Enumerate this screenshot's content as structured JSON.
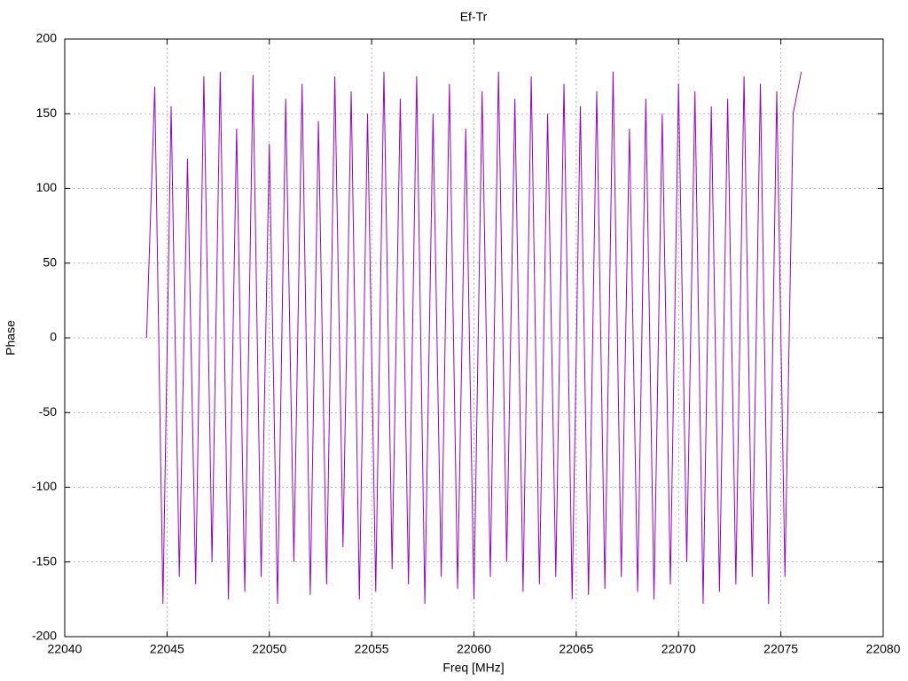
{
  "chart_data": {
    "type": "line",
    "title": "Ef-Tr",
    "xlabel": "Freq [MHz]",
    "ylabel": "Phase",
    "x": [
      22044,
      22044.4,
      22044.8,
      22045.2,
      22045.6,
      22046,
      22046.4,
      22046.8,
      22047.2,
      22047.6,
      22048,
      22048.4,
      22048.8,
      22049.2,
      22049.6,
      22050,
      22050.4,
      22050.8,
      22051.2,
      22051.6,
      22052,
      22052.4,
      22052.8,
      22053.2,
      22053.6,
      22054,
      22054.4,
      22054.8,
      22055.2,
      22055.6,
      22056,
      22056.4,
      22056.8,
      22057.2,
      22057.6,
      22058,
      22058.4,
      22058.8,
      22059.2,
      22059.6,
      22060,
      22060.4,
      22060.8,
      22061.2,
      22061.6,
      22062,
      22062.4,
      22062.8,
      22063.2,
      22063.6,
      22064,
      22064.4,
      22064.8,
      22065.2,
      22065.6,
      22066,
      22066.4,
      22066.8,
      22067.2,
      22067.6,
      22068,
      22068.4,
      22068.8,
      22069.2,
      22069.6,
      22070,
      22070.4,
      22070.8,
      22071.2,
      22071.6,
      22072,
      22072.4,
      22072.8,
      22073.2,
      22073.6,
      22074,
      22074.4,
      22074.8,
      22075.2,
      22075.6,
      22076
    ],
    "series": [
      {
        "name": "Ef-Tr",
        "color": "#9400d3",
        "values": [
          0,
          168,
          -178,
          155,
          -160,
          120,
          -165,
          175,
          -150,
          178,
          -175,
          140,
          -170,
          176,
          -160,
          130,
          -178,
          160,
          -150,
          170,
          -172,
          145,
          -165,
          175,
          -140,
          165,
          -175,
          150,
          -170,
          178,
          -155,
          160,
          -165,
          175,
          -178,
          150,
          -160,
          170,
          -168,
          140,
          -175,
          165,
          -160,
          178,
          -150,
          160,
          -170,
          175,
          -165,
          150,
          -160,
          170,
          -175,
          155,
          -172,
          165,
          -168,
          178,
          -160,
          140,
          -170,
          160,
          -175,
          150,
          -165,
          170,
          -150,
          165,
          -178,
          155,
          -170,
          160,
          -165,
          175,
          -160,
          170,
          -178,
          165,
          -160,
          150,
          178
        ]
      }
    ],
    "xlim": [
      22040,
      22080
    ],
    "xticks": [
      22040,
      22045,
      22050,
      22055,
      22060,
      22065,
      22070,
      22075,
      22080
    ],
    "ylim": [
      -200,
      200
    ],
    "yticks": [
      -200,
      -150,
      -100,
      -50,
      0,
      50,
      100,
      150,
      200
    ],
    "grid": true
  }
}
